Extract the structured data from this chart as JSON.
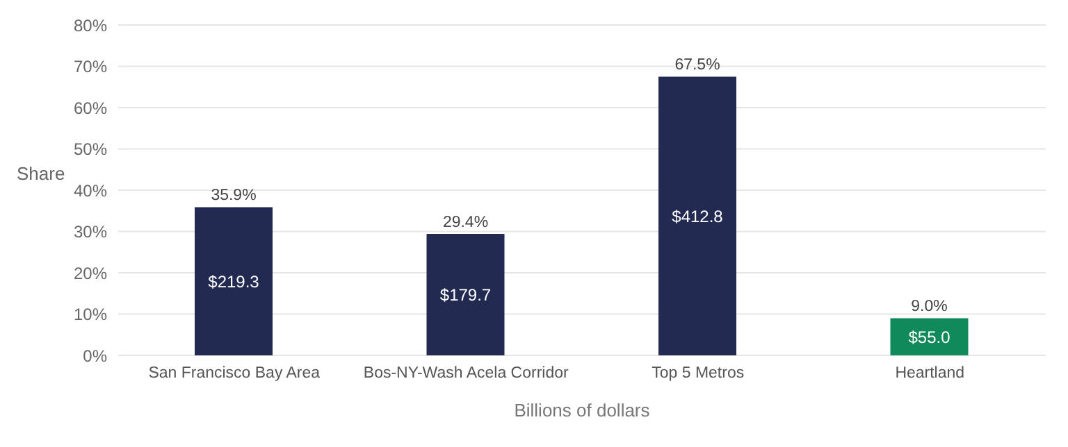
{
  "chart_data": {
    "type": "bar",
    "ylabel": "Share",
    "xlabel": "Billions of dollars",
    "categories": [
      "San Francisco Bay Area",
      "Bos-NY-Wash Acela Corridor",
      "Top 5 Metros",
      "Heartland"
    ],
    "values": [
      35.9,
      29.4,
      67.5,
      9.0
    ],
    "colors": [
      "#222a52",
      "#222a52",
      "#222a52",
      "#108a5a"
    ],
    "value_labels": [
      "35.9%",
      "29.4%",
      "67.5%",
      "9.0%"
    ],
    "annotations": [
      "$219.3",
      "$179.7",
      "$412.8",
      "$55.0"
    ],
    "ylim": [
      0,
      80
    ],
    "yticks": [
      {
        "value": 0,
        "label": "0%"
      },
      {
        "value": 10,
        "label": "10%"
      },
      {
        "value": 20,
        "label": "20%"
      },
      {
        "value": 30,
        "label": "30%"
      },
      {
        "value": 40,
        "label": "40%"
      },
      {
        "value": 50,
        "label": "50%"
      },
      {
        "value": 60,
        "label": "60%"
      },
      {
        "value": 70,
        "label": "70%"
      },
      {
        "value": 80,
        "label": "80%"
      }
    ],
    "grid": "y",
    "legend": false
  }
}
